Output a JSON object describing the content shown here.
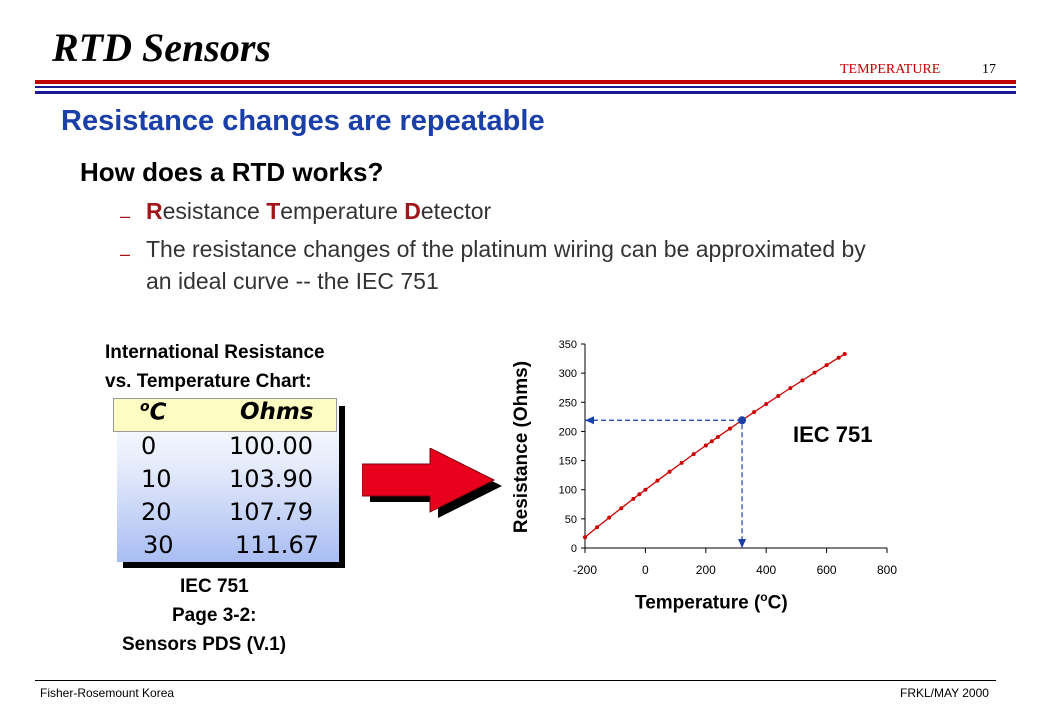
{
  "header": {
    "title": "RTD Sensors",
    "section": "TEMPERATURE",
    "page_number": "17"
  },
  "subtitle": "Resistance changes are repeatable",
  "question": "How does a RTD works?",
  "bullets": {
    "b1": {
      "initial_r": "R",
      "rest_r": "esistance ",
      "initial_t": "T",
      "rest_t": "emperature ",
      "initial_d": "D",
      "rest_d": "etector"
    },
    "b2_line1": "The resistance changes of the platinum wiring can be approximated by",
    "b2_line2": "an ideal  curve -- the IEC 751"
  },
  "table": {
    "caption_line1": "International Resistance",
    "caption_line2": "vs. Temperature Chart:",
    "col_celsius": "oC",
    "col_celsius_sup": "o",
    "col_celsius_unit": "C",
    "col_ohms": "Ohms",
    "rows": [
      {
        "temp": "0",
        "ohms": "100.00"
      },
      {
        "temp": "10",
        "ohms": "103.90"
      },
      {
        "temp": "20",
        "ohms": "107.79"
      },
      {
        "temp": "30",
        "ohms": "111.67"
      }
    ],
    "ref_line1": "IEC 751",
    "ref_line2": "Page 3-2:",
    "ref_line3": "Sensors PDS (V.1)"
  },
  "chart_data": {
    "type": "line",
    "title": "",
    "xlabel": "Temperature (oC)",
    "xlabel_prefix": "Temperature (",
    "xlabel_sup": "o",
    "xlabel_suffix": "C)",
    "ylabel": "Resistance (Ohms)",
    "annotation": "IEC 751",
    "xlim": [
      -200,
      800
    ],
    "ylim": [
      0,
      350
    ],
    "x_ticks": [
      "-200",
      "0",
      "200",
      "400",
      "600",
      "800"
    ],
    "y_ticks": [
      "0",
      "50",
      "100",
      "150",
      "200",
      "250",
      "300",
      "350"
    ],
    "x": [
      -200,
      -160,
      -120,
      -80,
      -40,
      -20,
      0,
      40,
      80,
      120,
      160,
      200,
      220,
      240,
      280,
      320,
      360,
      400,
      440,
      480,
      520,
      560,
      600,
      640,
      660
    ],
    "y": [
      18.5,
      35.5,
      52.1,
      68.3,
      84.3,
      92.2,
      100.0,
      115.5,
      130.9,
      146.1,
      161.1,
      175.9,
      183.2,
      190.5,
      204.9,
      219.2,
      233.2,
      247.1,
      260.8,
      274.3,
      287.6,
      300.8,
      313.7,
      326.5,
      332.8
    ],
    "highlight_point": {
      "x": 320,
      "y": 219.2
    },
    "series_color": "#cc0000",
    "highlight_color": "#1a3fa8",
    "grid": false
  },
  "footer": {
    "left": "Fisher-Rosemount Korea",
    "right": "FRKL/MAY 2000"
  }
}
